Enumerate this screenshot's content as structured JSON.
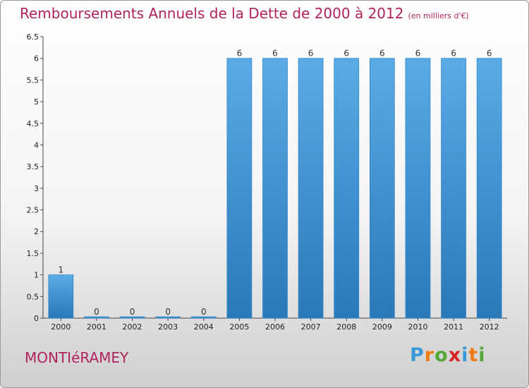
{
  "title": "Remboursements Annuels de la Dette de 2000 à 2012",
  "unit": "(en milliers d'€)",
  "commune": "MONTIéRAMEY",
  "brand": {
    "letters": [
      "P",
      "r",
      "o",
      "x",
      "i",
      "t",
      "i"
    ],
    "colors": [
      "#3a9ad9",
      "#f07b12",
      "#56a73a",
      "#d8232a",
      "#3a9ad9",
      "#f07b12",
      "#56a73a"
    ]
  },
  "chart_data": {
    "type": "bar",
    "categories": [
      "2000",
      "2001",
      "2002",
      "2003",
      "2004",
      "2005",
      "2006",
      "2007",
      "2008",
      "2009",
      "2010",
      "2011",
      "2012"
    ],
    "values": [
      1,
      0,
      0,
      0,
      0,
      6,
      6,
      6,
      6,
      6,
      6,
      6,
      6
    ],
    "ylim": [
      0,
      6.5
    ],
    "yticks": [
      "0",
      "0.5",
      "1",
      "1.5",
      "2",
      "2.5",
      "3",
      "3.5",
      "4",
      "4.5",
      "5",
      "5.5",
      "6",
      "6.5"
    ],
    "grid": false,
    "bar_color": "#3f94d4"
  }
}
